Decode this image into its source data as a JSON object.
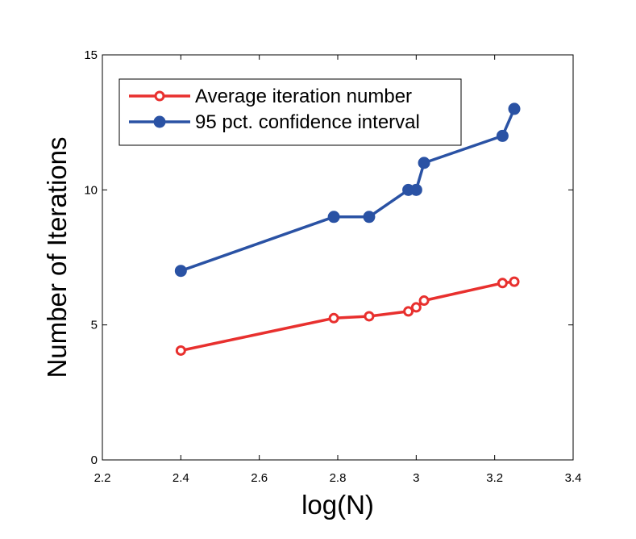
{
  "chart_data": {
    "type": "line",
    "title": "",
    "xlabel": "log(N)",
    "ylabel": "Number of Iterations",
    "xlim": [
      2.2,
      3.4
    ],
    "ylim": [
      0,
      15
    ],
    "xticks": [
      2.2,
      2.4,
      2.6,
      2.8,
      3.0,
      3.2,
      3.4
    ],
    "xtick_labels": [
      "2.2",
      "2.4",
      "2.6",
      "2.8",
      "3",
      "3.2",
      "3.4"
    ],
    "yticks": [
      0,
      5,
      10,
      15
    ],
    "ytick_labels": [
      "0",
      "5",
      "10",
      "15"
    ],
    "grid": false,
    "legend_position": "top-left",
    "series": [
      {
        "name": "Average iteration number",
        "color": "#e8302e",
        "marker": "open-circle",
        "x": [
          2.4,
          2.79,
          2.88,
          2.98,
          3.0,
          3.02,
          3.22,
          3.25
        ],
        "y": [
          4.05,
          5.25,
          5.32,
          5.5,
          5.65,
          5.9,
          6.55,
          6.6
        ]
      },
      {
        "name": "95 pct. confidence interval",
        "color": "#2a52a4",
        "marker": "filled-circle",
        "x": [
          2.4,
          2.79,
          2.88,
          2.98,
          3.0,
          3.02,
          3.22,
          3.25
        ],
        "y": [
          7,
          9,
          9,
          10,
          10,
          11,
          12,
          13
        ]
      }
    ]
  }
}
